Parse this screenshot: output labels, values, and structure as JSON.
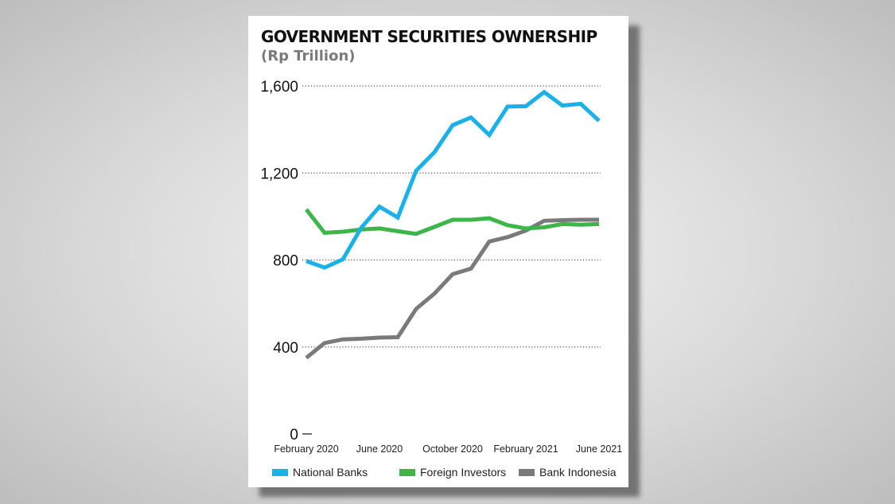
{
  "chart_data": {
    "type": "line",
    "title": "GOVERNMENT SECURITIES OWNERSHIP",
    "subtitle": "(Rp Trillion)",
    "xlabel": "",
    "ylabel": "",
    "ylim": [
      0,
      1600
    ],
    "yticks": [
      0,
      400,
      800,
      1200,
      1600
    ],
    "ytick_labels": [
      "0",
      "400",
      "800",
      "1,200",
      "1,600"
    ],
    "x": [
      "Feb 2020",
      "Mar 2020",
      "Apr 2020",
      "May 2020",
      "Jun 2020",
      "Jul 2020",
      "Aug 2020",
      "Sep 2020",
      "Oct 2020",
      "Nov 2020",
      "Dec 2020",
      "Jan 2021",
      "Feb 2021",
      "Mar 2021",
      "Apr 2021",
      "May 2021",
      "Jun 2021"
    ],
    "xtick_labels": [
      {
        "index": 0,
        "label": "February 2020"
      },
      {
        "index": 4,
        "label": "June 2020"
      },
      {
        "index": 8,
        "label": "October 2020"
      },
      {
        "index": 12,
        "label": "February 2021"
      },
      {
        "index": 16,
        "label": "June 2021"
      }
    ],
    "grid": "horizontal-dotted",
    "legend_position": "bottom",
    "series": [
      {
        "name": "National Banks",
        "color": "#1ab0e8",
        "values": [
          795,
          765,
          803,
          948,
          1045,
          995,
          1210,
          1295,
          1420,
          1455,
          1375,
          1505,
          1507,
          1572,
          1510,
          1518,
          1440
        ]
      },
      {
        "name": "Foreign Investors",
        "color": "#3cb54a",
        "values": [
          1032,
          925,
          930,
          940,
          945,
          932,
          920,
          952,
          985,
          985,
          992,
          960,
          945,
          950,
          965,
          962,
          965
        ]
      },
      {
        "name": "Bank Indonesia",
        "color": "#7a7a7a",
        "values": [
          350,
          418,
          435,
          438,
          443,
          445,
          575,
          645,
          735,
          760,
          885,
          905,
          935,
          980,
          983,
          985,
          985
        ]
      }
    ]
  }
}
